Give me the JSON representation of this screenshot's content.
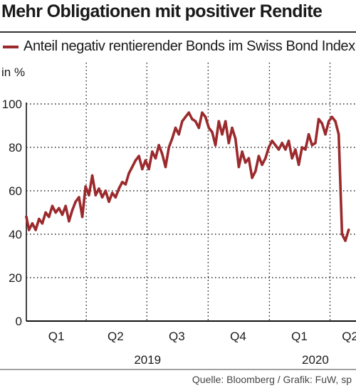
{
  "title": "Mehr Obligationen mit positiver Rendite",
  "source": "Quelle: Bloomberg / Grafik: FuW, sp",
  "colors": {
    "series": "#9b2a2d",
    "text": "#1a1a1a",
    "grid": "#222222"
  },
  "chart_data": {
    "type": "line",
    "title": "Mehr Obligationen mit positiver Rendite",
    "ylabel": "in %",
    "ylim": [
      0,
      100
    ],
    "yticks": [
      0,
      20,
      40,
      60,
      80,
      100
    ],
    "xlim": [
      "2019-01-01",
      "2020-05-10"
    ],
    "quarter_ticks": [
      {
        "label": "Q1",
        "date": "2019-02-15"
      },
      {
        "label": "Q2",
        "date": "2019-05-15"
      },
      {
        "label": "Q3",
        "date": "2019-08-15"
      },
      {
        "label": "Q4",
        "date": "2019-11-15"
      },
      {
        "label": "Q1",
        "date": "2020-02-15"
      },
      {
        "label": "Q2",
        "date": "2020-05-01"
      }
    ],
    "year_labels": [
      {
        "label": "2019",
        "date": "2019-07-02"
      },
      {
        "label": "2020",
        "date": "2020-03-10"
      }
    ],
    "gridlines_x": [
      "2019-04-01",
      "2019-07-01",
      "2019-10-01",
      "2020-01-01",
      "2020-04-01"
    ],
    "series": [
      {
        "name": "Anteil negativ rentierender Bonds im Swiss Bond Index",
        "x": [
          "2019-01-01",
          "2019-01-05",
          "2019-01-10",
          "2019-01-15",
          "2019-01-20",
          "2019-01-25",
          "2019-01-30",
          "2019-02-04",
          "2019-02-09",
          "2019-02-14",
          "2019-02-19",
          "2019-02-24",
          "2019-03-01",
          "2019-03-06",
          "2019-03-11",
          "2019-03-16",
          "2019-03-21",
          "2019-03-26",
          "2019-03-31",
          "2019-04-05",
          "2019-04-10",
          "2019-04-15",
          "2019-04-20",
          "2019-04-25",
          "2019-04-30",
          "2019-05-05",
          "2019-05-10",
          "2019-05-15",
          "2019-05-20",
          "2019-05-25",
          "2019-05-30",
          "2019-06-04",
          "2019-06-09",
          "2019-06-14",
          "2019-06-19",
          "2019-06-24",
          "2019-06-29",
          "2019-07-04",
          "2019-07-09",
          "2019-07-14",
          "2019-07-19",
          "2019-07-24",
          "2019-07-29",
          "2019-08-03",
          "2019-08-08",
          "2019-08-13",
          "2019-08-18",
          "2019-08-23",
          "2019-08-28",
          "2019-09-02",
          "2019-09-07",
          "2019-09-12",
          "2019-09-17",
          "2019-09-22",
          "2019-09-27",
          "2019-10-02",
          "2019-10-07",
          "2019-10-12",
          "2019-10-17",
          "2019-10-22",
          "2019-10-27",
          "2019-11-01",
          "2019-11-06",
          "2019-11-11",
          "2019-11-16",
          "2019-11-21",
          "2019-11-26",
          "2019-12-01",
          "2019-12-06",
          "2019-12-11",
          "2019-12-16",
          "2019-12-21",
          "2019-12-26",
          "2019-12-31",
          "2020-01-05",
          "2020-01-10",
          "2020-01-15",
          "2020-01-20",
          "2020-01-25",
          "2020-01-30",
          "2020-02-04",
          "2020-02-09",
          "2020-02-14",
          "2020-02-19",
          "2020-02-24",
          "2020-02-29",
          "2020-03-05",
          "2020-03-10",
          "2020-03-15",
          "2020-03-20",
          "2020-03-25",
          "2020-03-30",
          "2020-04-04",
          "2020-04-09",
          "2020-04-14",
          "2020-04-19",
          "2020-04-24",
          "2020-04-29"
        ],
        "values": [
          48,
          42,
          45,
          42,
          47,
          45,
          50,
          48,
          53,
          50,
          52,
          49,
          53,
          46,
          51,
          55,
          57,
          48,
          62,
          58,
          67,
          58,
          61,
          57,
          60,
          55,
          59,
          57,
          61,
          64,
          63,
          68,
          71,
          74,
          76,
          70,
          74,
          70,
          78,
          75,
          81,
          77,
          71,
          80,
          84,
          89,
          86,
          92,
          94,
          96,
          93,
          92,
          89,
          96,
          94,
          89,
          87,
          81,
          92,
          86,
          92,
          82,
          89,
          84,
          71,
          78,
          73,
          75,
          66,
          69,
          76,
          72,
          75,
          80,
          83,
          81,
          79,
          82,
          79,
          83,
          75,
          79,
          72,
          80,
          79,
          86,
          81,
          82,
          93,
          91,
          86,
          92,
          94,
          92,
          86,
          40,
          37,
          42
        ]
      }
    ]
  }
}
